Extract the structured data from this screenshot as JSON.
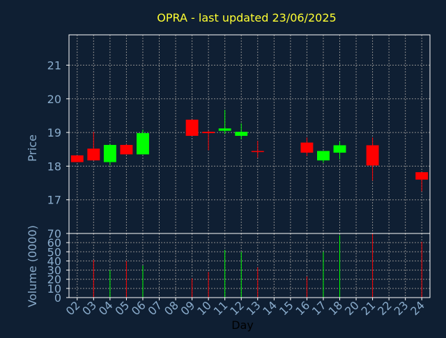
{
  "title": "OPRA - last updated 23/06/2025",
  "colors": {
    "background": "#0f1f33",
    "title": "#ffff33",
    "axis_text": "#8aaccc",
    "frame": "#ffffff",
    "grid": "#8c8c8c",
    "up": "#00ff00",
    "down": "#ff0000"
  },
  "chart_data": [
    {
      "type": "candlestick",
      "ylabel": "Price",
      "ylim": [
        16.0,
        21.9
      ],
      "yticks": [
        17,
        18,
        19,
        20,
        21
      ],
      "grid": true,
      "x_positions": [
        0,
        1,
        2,
        3,
        4,
        7,
        8,
        9,
        10,
        11,
        14,
        15,
        16,
        18,
        21
      ],
      "candles": [
        {
          "day": "02",
          "open": 18.32,
          "high": 18.32,
          "low": 18.12,
          "close": 18.12
        },
        {
          "day": "03",
          "open": 18.52,
          "high": 19.02,
          "low": 18.17,
          "close": 18.17
        },
        {
          "day": "04",
          "open": 18.12,
          "high": 18.65,
          "low": 18.02,
          "close": 18.63
        },
        {
          "day": "05",
          "open": 18.63,
          "high": 18.65,
          "low": 18.35,
          "close": 18.35
        },
        {
          "day": "06",
          "open": 18.35,
          "high": 19.08,
          "low": 18.35,
          "close": 18.98
        },
        {
          "day": "09",
          "open": 19.38,
          "high": 19.38,
          "low": 18.9,
          "close": 18.9
        },
        {
          "day": "10",
          "open": 19.02,
          "high": 19.05,
          "low": 18.47,
          "close": 18.98
        },
        {
          "day": "11",
          "open": 19.05,
          "high": 19.67,
          "low": 18.95,
          "close": 19.12
        },
        {
          "day": "12",
          "open": 18.9,
          "high": 19.27,
          "low": 18.8,
          "close": 19.02
        },
        {
          "day": "13",
          "open": 18.45,
          "high": 18.75,
          "low": 18.25,
          "close": 18.42
        },
        {
          "day": "16",
          "open": 18.7,
          "high": 18.85,
          "low": 18.3,
          "close": 18.4
        },
        {
          "day": "17",
          "open": 18.17,
          "high": 18.45,
          "low": 18.1,
          "close": 18.45
        },
        {
          "day": "18",
          "open": 18.4,
          "high": 18.73,
          "low": 18.2,
          "close": 18.62
        },
        {
          "day": "20",
          "open": 18.62,
          "high": 18.85,
          "low": 17.57,
          "close": 18.02
        },
        {
          "day": "23",
          "open": 17.82,
          "high": 17.82,
          "low": 17.25,
          "close": 17.6
        }
      ]
    },
    {
      "type": "bar",
      "ylabel": "Volume (0000)",
      "ylim": [
        0,
        70
      ],
      "yticks": [
        0,
        10,
        20,
        30,
        40,
        50,
        60,
        70
      ],
      "grid": true,
      "xlabel": "Day",
      "x_ticks": [
        "02",
        "03",
        "04",
        "05",
        "06",
        "07",
        "08",
        "09",
        "10",
        "11",
        "12",
        "13",
        "14",
        "15",
        "16",
        "17",
        "18",
        "20",
        "21",
        "22",
        "23",
        "24"
      ],
      "x_positions": [
        0,
        1,
        2,
        3,
        4,
        7,
        8,
        9,
        10,
        11,
        14,
        15,
        16,
        18,
        21
      ],
      "volumes": [
        {
          "day": "02",
          "value": 0
        },
        {
          "day": "03",
          "value": 41
        },
        {
          "day": "04",
          "value": 30
        },
        {
          "day": "05",
          "value": 40
        },
        {
          "day": "06",
          "value": 35
        },
        {
          "day": "09",
          "value": 21
        },
        {
          "day": "10",
          "value": 28
        },
        {
          "day": "11",
          "value": 52
        },
        {
          "day": "12",
          "value": 50
        },
        {
          "day": "13",
          "value": 33
        },
        {
          "day": "16",
          "value": 23
        },
        {
          "day": "17",
          "value": 50
        },
        {
          "day": "18",
          "value": 68
        },
        {
          "day": "20",
          "value": 70
        },
        {
          "day": "23",
          "value": 61
        }
      ]
    }
  ]
}
